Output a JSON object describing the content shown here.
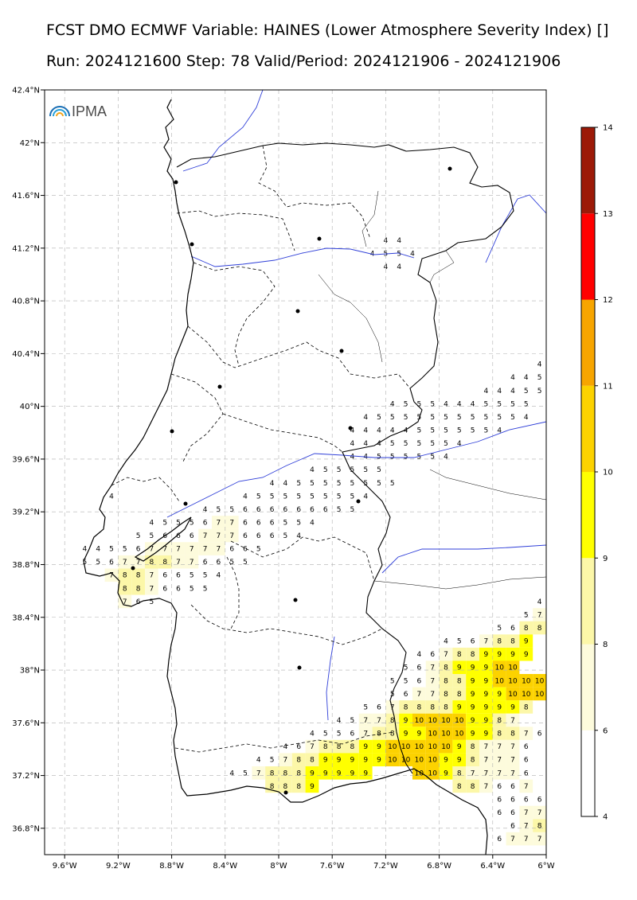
{
  "header": {
    "line1": "FCST DMO ECMWF Variable: HAINES (Lower Atmosphere Severity Index) []",
    "line2": "Run: 2024121600 Step: 78 Valid/Period: 2024121906 - 2024121906"
  },
  "logo": {
    "text": "IPMA"
  },
  "chart_data": {
    "type": "heatmap",
    "variable": "HAINES",
    "x_ticks": [
      "9.6°W",
      "9.2°W",
      "8.8°W",
      "8.4°W",
      "8°W",
      "7.6°W",
      "7.2°W",
      "6.8°W",
      "6.4°W",
      "6°W"
    ],
    "y_ticks": [
      "42.4°N",
      "42°N",
      "41.6°N",
      "41.2°N",
      "40.8°N",
      "40.4°N",
      "40°N",
      "39.6°N",
      "39.2°N",
      "38.8°N",
      "38.4°N",
      "38°N",
      "37.6°N",
      "37.2°N",
      "36.8°N"
    ],
    "xlim": [
      -9.75,
      -6.0
    ],
    "ylim": [
      36.6,
      42.4
    ],
    "grid": true,
    "colorbar": {
      "ticks": [
        "4",
        "6",
        "8",
        "9",
        "10",
        "11",
        "12",
        "13",
        "14"
      ],
      "colors": [
        "#ffffff",
        "#fdfbdc",
        "#fcf7a8",
        "#ffff00",
        "#fcd200",
        "#f7a500",
        "#ff0000",
        "#9c1a08"
      ]
    },
    "rows": [
      {
        "lat": 41.26,
        "lon0": -7.2,
        "v": "4 4"
      },
      {
        "lat": 41.16,
        "lon0": -7.3,
        "v": "4 5 5 4"
      },
      {
        "lat": 41.06,
        "lon0": -7.2,
        "v": "4 4"
      },
      {
        "lat": 40.32,
        "lon0": -6.05,
        "v": "4"
      },
      {
        "lat": 40.22,
        "lon0": -6.25,
        "v": "4 4 5"
      },
      {
        "lat": 40.12,
        "lon0": -6.45,
        "v": "4 4 4 5 5"
      },
      {
        "lat": 40.02,
        "lon0": -7.15,
        "v": "4 5 5 5 4 4 4 5 5 5 5"
      },
      {
        "lat": 39.92,
        "lon0": -7.35,
        "v": "4 5 5 5 5 5 5 5 5 5 5 5 4"
      },
      {
        "lat": 39.82,
        "lon0": -7.45,
        "v": "4 4 4 4 4 5 5 5 5 5 5 4"
      },
      {
        "lat": 39.72,
        "lon0": -7.45,
        "v": "4 4 4 5 5 5 5 5 4"
      },
      {
        "lat": 39.62,
        "lon0": -7.45,
        "v": "4 4 5 5 5 5 5 4"
      },
      {
        "lat": 39.52,
        "lon0": -7.75,
        "v": "4 5 5 5 5 5"
      },
      {
        "lat": 39.42,
        "lon0": -8.05,
        "v": "4 4 5 5 5 5 5 5 5 5"
      },
      {
        "lat": 39.32,
        "lon0": -8.25,
        "v": "4 5 5 5 5 5 5 5 5 4"
      },
      {
        "lat": 39.32,
        "lon0": -9.25,
        "v": "4"
      },
      {
        "lat": 39.22,
        "lon0": -8.55,
        "v": "4 5 5 6 6 6 6 6 6 6 5 5"
      },
      {
        "lat": 39.12,
        "lon0": -8.95,
        "v": "4 5 5 5 6 7 7 6 6 6 5 5 4"
      },
      {
        "lat": 39.02,
        "lon0": -9.05,
        "v": "5 5 6 6 6 7 7 7 6 6 6 5 4"
      },
      {
        "lat": 38.92,
        "lon0": -9.15,
        "v": "5 6 7 7 7 7 7 7 6 6 5"
      },
      {
        "lat": 38.92,
        "lon0": -9.45,
        "v": "4 4 5"
      },
      {
        "lat": 38.82,
        "lon0": -9.45,
        "v": "5 5 6 7 7 8 8 7 7 6 6 5 5"
      },
      {
        "lat": 38.72,
        "lon0": -9.25,
        "v": "7 8 8 7 6 6 5 5 4"
      },
      {
        "lat": 38.62,
        "lon0": -9.15,
        "v": "8 8 7 6 6 5 5"
      },
      {
        "lat": 38.52,
        "lon0": -9.15,
        "v": "7 6 5"
      },
      {
        "lat": 38.52,
        "lon0": -6.05,
        "v": "4"
      },
      {
        "lat": 38.42,
        "lon0": -6.15,
        "v": "5 7"
      },
      {
        "lat": 38.32,
        "lon0": -6.35,
        "v": "5 6 8 8"
      },
      {
        "lat": 38.22,
        "lon0": -6.75,
        "v": "4 5 6 7 8 8 9"
      },
      {
        "lat": 38.12,
        "lon0": -6.95,
        "v": "4 6 7 8 8 9 9 9 9"
      },
      {
        "lat": 38.02,
        "lon0": -7.05,
        "v": "5 6 7 8 9 9 9 10 10"
      },
      {
        "lat": 37.92,
        "lon0": -7.15,
        "v": "5 5 6 7 8 8 9 9 10 10 10 10"
      },
      {
        "lat": 37.82,
        "lon0": -7.15,
        "v": "5 6 7 7 8 8 9 9 9 10 10 10"
      },
      {
        "lat": 37.72,
        "lon0": -7.35,
        "v": "5 6 7 8 8 8 8 9 9 9 9 9 8"
      },
      {
        "lat": 37.62,
        "lon0": -7.55,
        "v": "4 5 7 7 8 9 10 10 10 10 9 9 8 7"
      },
      {
        "lat": 37.52,
        "lon0": -7.75,
        "v": "4 5 5 6 7 8 8 9 9 10 10 10 9 9 8 8 7 6"
      },
      {
        "lat": 37.42,
        "lon0": -7.95,
        "v": "4 6 7 8 8 8 9 9 10 10 10 10 10 9 8 7 7 7 6"
      },
      {
        "lat": 37.32,
        "lon0": -8.15,
        "v": "4 5 7 8 8 9 9 9 9 9 10 10 10 10 9 9 8 7 7 7 6"
      },
      {
        "lat": 37.22,
        "lon0": -8.35,
        "v": "4 5 7 8 8 8 9 9 9 9 9"
      },
      {
        "lat": 37.22,
        "lon0": -6.95,
        "v": "10 10 9 8 7 7 7 7 6"
      },
      {
        "lat": 37.12,
        "lon0": -8.05,
        "v": "8 8 8 9"
      },
      {
        "lat": 37.12,
        "lon0": -6.65,
        "v": "8 8 7 6 6 7"
      },
      {
        "lat": 37.02,
        "lon0": -6.35,
        "v": "6 6 6 6 7"
      },
      {
        "lat": 36.92,
        "lon0": -6.35,
        "v": "6 6 7 7"
      },
      {
        "lat": 36.82,
        "lon0": -6.25,
        "v": "6 7 8"
      },
      {
        "lat": 36.72,
        "lon0": -6.35,
        "v": "6 7 7 7"
      }
    ]
  }
}
